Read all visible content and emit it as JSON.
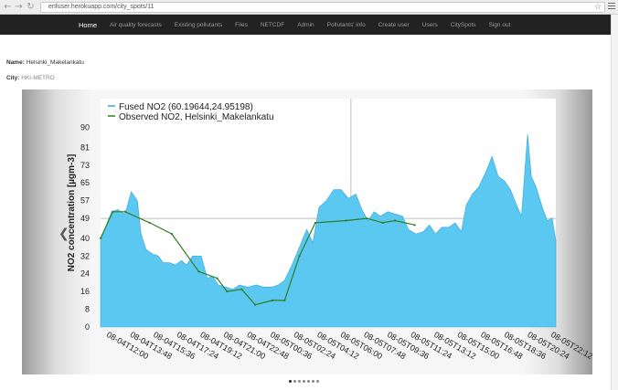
{
  "browser": {
    "url": "enfuser.herokuapp.com/city_spots/11"
  },
  "nav": {
    "items": [
      {
        "label": "Home",
        "active": true
      },
      {
        "label": "Air quality forecasts",
        "active": false
      },
      {
        "label": "Existing pollutants",
        "active": false
      },
      {
        "label": "Files",
        "active": false
      },
      {
        "label": "NETCDF",
        "active": false
      },
      {
        "label": "Admin",
        "active": false
      },
      {
        "label": "Pollutants' info",
        "active": false
      },
      {
        "label": "Create user",
        "active": false
      },
      {
        "label": "Users",
        "active": false
      },
      {
        "label": "CitySpots",
        "active": false
      },
      {
        "label": "Sign out",
        "active": false
      }
    ]
  },
  "info": {
    "name_label": "Name:",
    "name_value": "Helsinki_Makelankatu",
    "city_label": "City:",
    "city_value": "HKI-METRO"
  },
  "carousel": {
    "slides": 7,
    "active_slide": 0
  },
  "chart_data": {
    "type": "area",
    "ylabel": "NO2 concentration [µgm-3]",
    "ylim": [
      0,
      100
    ],
    "yticks": [
      0,
      8,
      16,
      24,
      32,
      40,
      49,
      57,
      65,
      73,
      81,
      90
    ],
    "xticks": [
      "08-04T12:00",
      "08-04T13:48",
      "08-04T15:36",
      "08-04T17:24",
      "08-04T19:12",
      "08-04T21:00",
      "08-04T22:48",
      "08-05T00:36",
      "08-05T02:24",
      "08-05T04:12",
      "08-05T06:00",
      "08-05T07:48",
      "08-05T09:36",
      "08-05T11:24",
      "08-05T13:12",
      "08-05T15:00",
      "08-05T16:48",
      "08-05T18:36",
      "08-05T20:24",
      "08-05T22:12"
    ],
    "x_range_hours": [
      0,
      35.5
    ],
    "legend": {
      "placement": "top-left"
    },
    "series": [
      {
        "name": "Fused NO2 (60.19644,24.95198)",
        "type": "area",
        "color": "#5bc8f2",
        "points": [
          [
            0,
            39
          ],
          [
            0.4,
            45
          ],
          [
            0.9,
            52
          ],
          [
            1.4,
            53
          ],
          [
            2.0,
            51
          ],
          [
            2.5,
            61
          ],
          [
            3.0,
            57
          ],
          [
            3.3,
            42
          ],
          [
            3.7,
            35
          ],
          [
            4.2,
            33
          ],
          [
            4.7,
            32
          ],
          [
            5.1,
            29
          ],
          [
            5.6,
            29
          ],
          [
            6.1,
            28
          ],
          [
            6.6,
            30
          ],
          [
            7.0,
            28
          ],
          [
            7.5,
            32
          ],
          [
            8.2,
            32
          ],
          [
            8.7,
            22
          ],
          [
            9.1,
            23
          ],
          [
            9.6,
            19
          ],
          [
            10.2,
            18
          ],
          [
            10.8,
            17
          ],
          [
            11.3,
            19
          ],
          [
            12.0,
            18
          ],
          [
            12.7,
            19
          ],
          [
            13.3,
            18
          ],
          [
            14.0,
            18
          ],
          [
            14.5,
            19
          ],
          [
            15.0,
            21
          ],
          [
            15.6,
            28
          ],
          [
            16.2,
            36
          ],
          [
            16.8,
            44
          ],
          [
            17.3,
            38
          ],
          [
            17.8,
            54
          ],
          [
            18.4,
            57
          ],
          [
            19.0,
            62
          ],
          [
            19.6,
            62
          ],
          [
            20.2,
            58
          ],
          [
            20.8,
            60
          ],
          [
            21.3,
            53
          ],
          [
            21.8,
            48
          ],
          [
            22.3,
            52
          ],
          [
            22.8,
            50
          ],
          [
            23.4,
            52
          ],
          [
            24.0,
            51
          ],
          [
            24.6,
            50
          ],
          [
            25.1,
            44
          ],
          [
            25.7,
            42
          ],
          [
            26.3,
            43
          ],
          [
            26.8,
            46
          ],
          [
            27.3,
            42
          ],
          [
            27.8,
            45
          ],
          [
            28.4,
            45
          ],
          [
            28.9,
            47
          ],
          [
            29.4,
            43
          ],
          [
            29.8,
            55
          ],
          [
            30.3,
            60
          ],
          [
            30.8,
            63
          ],
          [
            31.4,
            70
          ],
          [
            31.9,
            77
          ],
          [
            32.4,
            68
          ],
          [
            32.9,
            66
          ],
          [
            33.4,
            62
          ],
          [
            33.9,
            55
          ],
          [
            34.3,
            50
          ],
          [
            34.8,
            87
          ],
          [
            35.1,
            68
          ],
          [
            35.5,
            63
          ],
          [
            36.0,
            54
          ],
          [
            36.4,
            48
          ],
          [
            36.8,
            49
          ],
          [
            37.1,
            39
          ]
        ]
      },
      {
        "name": "Observed NO2, Helsinki_Makelankatu",
        "type": "line",
        "color": "#2f7d1e",
        "points": [
          [
            0,
            40
          ],
          [
            1.0,
            52
          ],
          [
            2.0,
            52
          ],
          [
            4.0,
            47
          ],
          [
            5.8,
            42
          ],
          [
            8.0,
            25
          ],
          [
            9.5,
            22
          ],
          [
            10.3,
            16
          ],
          [
            11.5,
            17
          ],
          [
            12.6,
            10
          ],
          [
            14.0,
            12
          ],
          [
            15.0,
            12
          ],
          [
            16.2,
            32
          ],
          [
            17.5,
            47
          ],
          [
            20.0,
            48
          ],
          [
            21.7,
            49
          ],
          [
            23.0,
            47
          ],
          [
            24.0,
            48
          ],
          [
            25.6,
            46
          ]
        ]
      }
    ]
  }
}
